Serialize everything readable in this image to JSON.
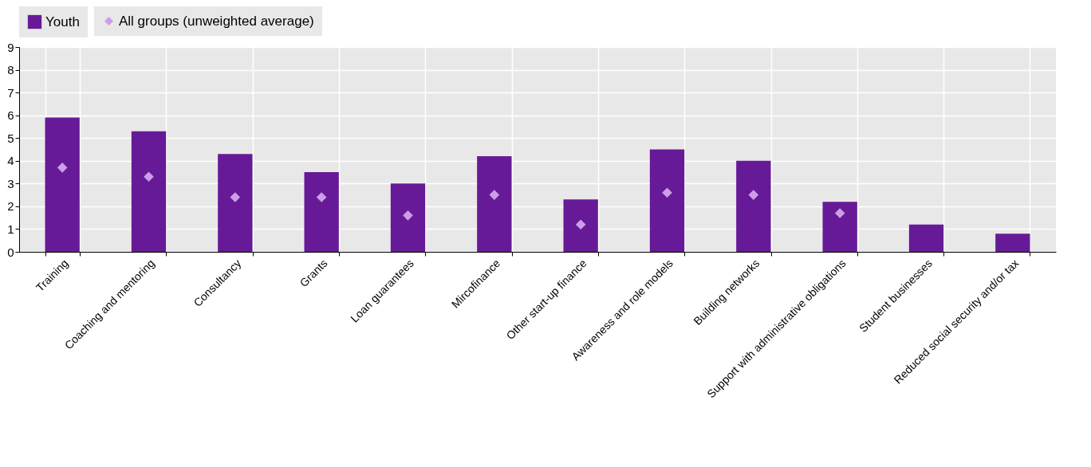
{
  "chart_data": {
    "type": "bar",
    "categories": [
      "Training",
      "Coaching and mentoring",
      "Consultancy",
      "Grants",
      "Loan guarantees",
      "Mircofinance",
      "Other start-up finance",
      "Awareness and role models",
      "Building networks",
      "Support with administrative obligations",
      "Student businesses",
      "Reduced social security and/or tax"
    ],
    "series": [
      {
        "name": "Youth",
        "color": "#671a97",
        "values": [
          5.9,
          5.3,
          4.3,
          3.5,
          3.0,
          4.2,
          2.3,
          4.5,
          4.0,
          2.2,
          1.2,
          0.8
        ]
      },
      {
        "name": "All groups (unweighted average)",
        "type": "scatter",
        "color": "#cc9ee8",
        "values": [
          3.7,
          3.3,
          2.4,
          2.4,
          1.6,
          2.5,
          1.2,
          2.6,
          2.5,
          1.7,
          null,
          null
        ]
      }
    ],
    "ylim": [
      0,
      9
    ],
    "yticks": [
      0,
      1,
      2,
      3,
      4,
      5,
      6,
      7,
      8,
      9
    ],
    "grid": true,
    "legend": "top",
    "marker": "diamond"
  }
}
